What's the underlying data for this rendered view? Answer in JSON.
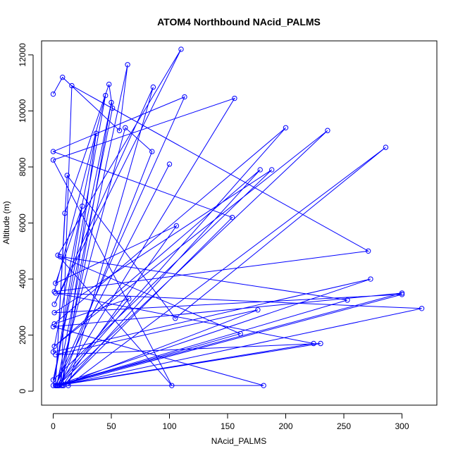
{
  "chart_data": {
    "type": "line",
    "title": "ATOM4 Northbound NAcid_PALMS",
    "xlabel": "NAcid_PALMS",
    "ylabel": "Altitude (m)",
    "xlim": [
      -10,
      330
    ],
    "ylim": [
      -500,
      12500
    ],
    "x_ticks": [
      0,
      50,
      100,
      150,
      200,
      250,
      300
    ],
    "y_ticks": [
      0,
      2000,
      4000,
      6000,
      8000,
      10000,
      12000
    ],
    "grid": false,
    "legend": "none",
    "markers": "open-circle",
    "line_color": "#0000ff",
    "series": [
      {
        "x": [
          0,
          8,
          57,
          64,
          5,
          156,
          0,
          102,
          4,
          110,
          1,
          86,
          13,
          286,
          105,
          12,
          2,
          10,
          48,
          51,
          3,
          62,
          85,
          7,
          16,
          271,
          1,
          45,
          0,
          25,
          2,
          106,
          8,
          37,
          0,
          273,
          2,
          113,
          0,
          154,
          9,
          178,
          1,
          236,
          4,
          161,
          6,
          253,
          3,
          224,
          2,
          317,
          5,
          300,
          1,
          188,
          0,
          50,
          7,
          176,
          2,
          230,
          4,
          200,
          1,
          65,
          3,
          181,
          0,
          300,
          2,
          100
        ],
        "y": [
          10600,
          11200,
          9300,
          11650,
          200,
          10450,
          8250,
          200,
          4850,
          12200,
          3100,
          10850,
          200,
          8700,
          2600,
          7700,
          200,
          6350,
          10950,
          10100,
          200,
          9400,
          8550,
          300,
          10900,
          5000,
          3550,
          10550,
          200,
          6600,
          3850,
          5900,
          200,
          9200,
          1400,
          4000,
          200,
          10500,
          8550,
          6200,
          200,
          7900,
          1600,
          9300,
          200,
          2050,
          4800,
          3250,
          200,
          1700,
          3500,
          2950,
          200,
          3450,
          2800,
          7900,
          400,
          10300,
          200,
          2900,
          1300,
          1700,
          200,
          9400,
          2400,
          3300,
          200,
          200,
          2300,
          3500,
          200,
          8100
        ]
      }
    ]
  }
}
